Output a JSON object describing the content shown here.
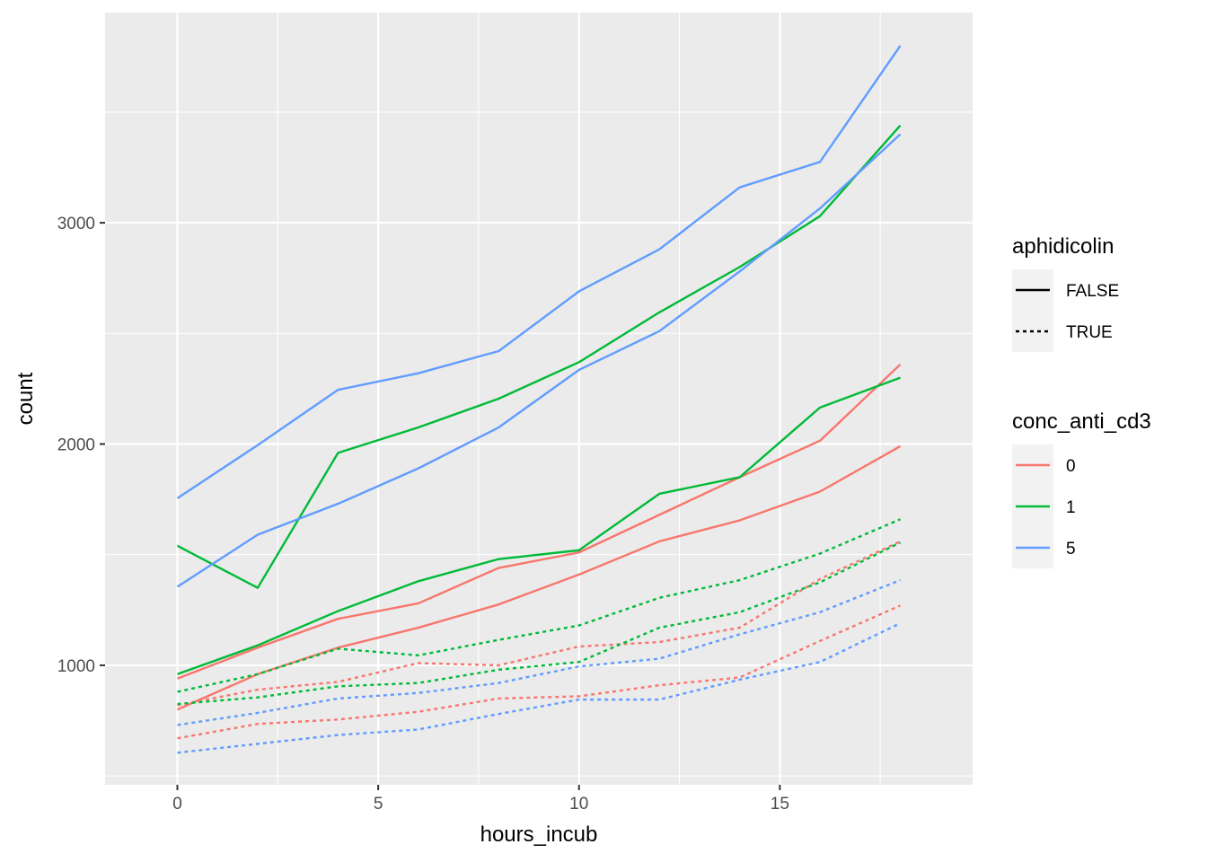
{
  "chart_data": {
    "type": "line",
    "title": "",
    "xlabel": "hours_incub",
    "ylabel": "count",
    "xlim": [
      -1.8,
      19.8
    ],
    "ylim": [
      460,
      3950
    ],
    "x_ticks": [
      0,
      5,
      10,
      15
    ],
    "x_tick_labels": [
      "0",
      "5",
      "10",
      "15"
    ],
    "y_ticks": [
      1000,
      2000,
      3000
    ],
    "y_tick_labels": [
      "1000",
      "2000",
      "3000"
    ],
    "y_minor_ticks": [
      500,
      1500,
      2500,
      3500
    ],
    "x_minor_ticks": [
      2.5,
      7.5,
      12.5,
      17.5
    ],
    "grid": true,
    "panel_background": "#ebebeb",
    "legend_position": "right",
    "x": [
      0,
      2,
      4,
      6,
      8,
      10,
      12,
      14,
      16,
      18
    ],
    "series": [
      {
        "conc_anti_cd3": "0",
        "aphidicolin": "FALSE",
        "color": "#F8766D",
        "linetype": "solid",
        "values": [
          940,
          1080,
          1210,
          1280,
          1440,
          1510,
          1680,
          1850,
          2015,
          2360
        ]
      },
      {
        "conc_anti_cd3": "0",
        "aphidicolin": "FALSE",
        "color": "#F8766D",
        "linetype": "solid",
        "values": [
          800,
          960,
          1080,
          1170,
          1275,
          1410,
          1560,
          1655,
          1785,
          1990
        ]
      },
      {
        "conc_anti_cd3": "0",
        "aphidicolin": "TRUE",
        "color": "#F8766D",
        "linetype": "dotted",
        "values": [
          820,
          890,
          925,
          1010,
          1000,
          1085,
          1105,
          1170,
          1390,
          1560
        ]
      },
      {
        "conc_anti_cd3": "0",
        "aphidicolin": "TRUE",
        "color": "#F8766D",
        "linetype": "dotted",
        "values": [
          670,
          735,
          755,
          790,
          850,
          860,
          910,
          945,
          1110,
          1270
        ]
      },
      {
        "conc_anti_cd3": "1",
        "aphidicolin": "FALSE",
        "color": "#00BA38",
        "linetype": "solid",
        "values": [
          1540,
          1350,
          1960,
          2075,
          2205,
          2370,
          2595,
          2800,
          3030,
          3440
        ]
      },
      {
        "conc_anti_cd3": "1",
        "aphidicolin": "FALSE",
        "color": "#00BA38",
        "linetype": "solid",
        "values": [
          960,
          1090,
          1245,
          1380,
          1480,
          1520,
          1775,
          1850,
          2165,
          2300
        ]
      },
      {
        "conc_anti_cd3": "1",
        "aphidicolin": "TRUE",
        "color": "#00BA38",
        "linetype": "dotted",
        "values": [
          880,
          960,
          1075,
          1045,
          1115,
          1180,
          1305,
          1385,
          1505,
          1660
        ]
      },
      {
        "conc_anti_cd3": "1",
        "aphidicolin": "TRUE",
        "color": "#00BA38",
        "linetype": "dotted",
        "values": [
          825,
          855,
          905,
          920,
          980,
          1015,
          1170,
          1240,
          1375,
          1555
        ]
      },
      {
        "conc_anti_cd3": "5",
        "aphidicolin": "FALSE",
        "color": "#619CFF",
        "linetype": "solid",
        "values": [
          1755,
          1995,
          2245,
          2320,
          2420,
          2690,
          2880,
          3160,
          3275,
          3800
        ]
      },
      {
        "conc_anti_cd3": "5",
        "aphidicolin": "FALSE",
        "color": "#619CFF",
        "linetype": "solid",
        "values": [
          1355,
          1590,
          1730,
          1890,
          2075,
          2335,
          2510,
          2780,
          3065,
          3400
        ]
      },
      {
        "conc_anti_cd3": "5",
        "aphidicolin": "TRUE",
        "color": "#619CFF",
        "linetype": "dotted",
        "values": [
          730,
          785,
          850,
          875,
          920,
          995,
          1030,
          1140,
          1240,
          1385
        ]
      },
      {
        "conc_anti_cd3": "5",
        "aphidicolin": "TRUE",
        "color": "#619CFF",
        "linetype": "dotted",
        "values": [
          605,
          645,
          685,
          710,
          780,
          845,
          845,
          935,
          1015,
          1190
        ]
      }
    ],
    "legends": [
      {
        "title": "aphidicolin",
        "entries": [
          {
            "label": "FALSE",
            "linetype": "solid",
            "color": "#000000"
          },
          {
            "label": "TRUE",
            "linetype": "dotted",
            "color": "#000000"
          }
        ]
      },
      {
        "title": "conc_anti_cd3",
        "entries": [
          {
            "label": "0",
            "linetype": "solid",
            "color": "#F8766D"
          },
          {
            "label": "1",
            "linetype": "solid",
            "color": "#00BA38"
          },
          {
            "label": "5",
            "linetype": "solid",
            "color": "#619CFF"
          }
        ]
      }
    ]
  }
}
